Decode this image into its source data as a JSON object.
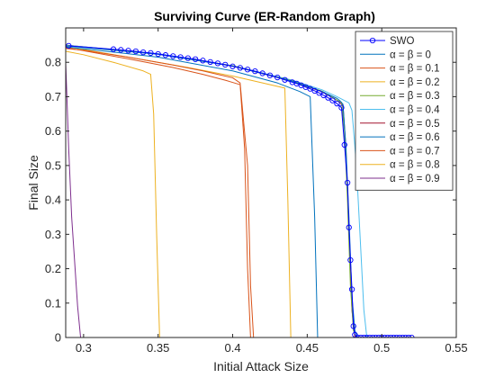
{
  "chart_data": {
    "type": "line",
    "title": "Surviving Curve (ER-Random Graph)",
    "xlabel": "Initial Attack Size",
    "ylabel": "Final Size",
    "xlim": [
      0.288,
      0.55
    ],
    "ylim": [
      0,
      0.9
    ],
    "xticks": [
      0.3,
      0.35,
      0.4,
      0.45,
      0.5,
      0.55
    ],
    "xtick_labels": [
      "0.3",
      "0.35",
      "0.4",
      "0.45",
      "0.5",
      "0.55"
    ],
    "yticks": [
      0,
      0.1,
      0.2,
      0.3,
      0.4,
      0.5,
      0.6,
      0.7,
      0.8
    ],
    "ytick_labels": [
      "0",
      "0.1",
      "0.2",
      "0.3",
      "0.4",
      "0.5",
      "0.6",
      "0.7",
      "0.8"
    ],
    "grid": false,
    "legend_position": "top-right",
    "series": [
      {
        "name": "SWO",
        "color": "#0000ff",
        "marker": "circle",
        "x": [
          0.29,
          0.32,
          0.325,
          0.33,
          0.335,
          0.34,
          0.345,
          0.35,
          0.355,
          0.36,
          0.365,
          0.37,
          0.375,
          0.38,
          0.385,
          0.39,
          0.395,
          0.4,
          0.405,
          0.41,
          0.415,
          0.42,
          0.425,
          0.43,
          0.435,
          0.44,
          0.443,
          0.446,
          0.449,
          0.452,
          0.455,
          0.458,
          0.461,
          0.464,
          0.467,
          0.47,
          0.473,
          0.475,
          0.477,
          0.478,
          0.479,
          0.48,
          0.481,
          0.482,
          0.484,
          0.486,
          0.488,
          0.49,
          0.492,
          0.494,
          0.496,
          0.498,
          0.5,
          0.502,
          0.504,
          0.506,
          0.508,
          0.51,
          0.512,
          0.514,
          0.516,
          0.518,
          0.52
        ],
        "y": [
          0.848,
          0.838,
          0.836,
          0.834,
          0.832,
          0.829,
          0.827,
          0.824,
          0.821,
          0.818,
          0.815,
          0.812,
          0.809,
          0.805,
          0.801,
          0.797,
          0.793,
          0.788,
          0.784,
          0.779,
          0.774,
          0.768,
          0.762,
          0.756,
          0.749,
          0.742,
          0.738,
          0.733,
          0.728,
          0.723,
          0.717,
          0.711,
          0.704,
          0.697,
          0.689,
          0.68,
          0.668,
          0.56,
          0.45,
          0.32,
          0.225,
          0.14,
          0.033,
          0.008,
          0,
          0,
          0,
          0,
          0,
          0,
          0,
          0,
          0,
          0,
          0,
          0,
          0,
          0,
          0,
          0,
          0,
          0,
          0
        ]
      },
      {
        "name": "α = β = 0",
        "color": "#0072bd",
        "marker": "",
        "x": [
          0.288,
          0.35,
          0.4,
          0.44,
          0.46,
          0.47,
          0.472,
          0.474,
          0.476,
          0.478,
          0.48,
          0.482,
          0.484,
          0.52
        ],
        "y": [
          0.848,
          0.823,
          0.789,
          0.745,
          0.715,
          0.695,
          0.688,
          0.678,
          0.55,
          0.35,
          0.12,
          0.02,
          0,
          0
        ]
      },
      {
        "name": "α = β = 0.1",
        "color": "#d95319",
        "marker": "",
        "x": [
          0.288,
          0.3,
          0.33,
          0.36,
          0.38,
          0.39,
          0.4,
          0.405,
          0.41,
          0.412,
          0.414,
          0.52
        ],
        "y": [
          0.84,
          0.835,
          0.815,
          0.792,
          0.775,
          0.765,
          0.755,
          0.74,
          0.5,
          0.15,
          0,
          0
        ]
      },
      {
        "name": "α = β = 0.2",
        "color": "#edb120",
        "marker": "",
        "x": [
          0.288,
          0.3,
          0.32,
          0.34,
          0.345,
          0.347,
          0.349,
          0.351,
          0.52
        ],
        "y": [
          0.832,
          0.822,
          0.8,
          0.775,
          0.765,
          0.65,
          0.3,
          0,
          0
        ]
      },
      {
        "name": "α = β = 0.3",
        "color": "#77ac30",
        "marker": "",
        "x": [
          0.288,
          0.35,
          0.4,
          0.44,
          0.46,
          0.47,
          0.473,
          0.475,
          0.477,
          0.479,
          0.481,
          0.483,
          0.52
        ],
        "y": [
          0.849,
          0.824,
          0.79,
          0.746,
          0.716,
          0.69,
          0.684,
          0.6,
          0.4,
          0.15,
          0.02,
          0,
          0
        ]
      },
      {
        "name": "α = β = 0.4",
        "color": "#4dbeee",
        "marker": "",
        "x": [
          0.288,
          0.35,
          0.4,
          0.44,
          0.46,
          0.47,
          0.478,
          0.48,
          0.483,
          0.486,
          0.488,
          0.49,
          0.52
        ],
        "y": [
          0.85,
          0.825,
          0.79,
          0.748,
          0.72,
          0.7,
          0.682,
          0.66,
          0.5,
          0.25,
          0.08,
          0,
          0
        ]
      },
      {
        "name": "α = β = 0.5",
        "color": "#a2142f",
        "marker": "",
        "x": [
          0.288,
          0.35,
          0.4,
          0.44,
          0.46,
          0.47,
          0.474,
          0.476,
          0.478,
          0.48,
          0.482,
          0.52
        ],
        "y": [
          0.85,
          0.824,
          0.789,
          0.745,
          0.714,
          0.69,
          0.675,
          0.55,
          0.3,
          0.08,
          0,
          0
        ]
      },
      {
        "name": "α = β = 0.6",
        "color": "#0072bd",
        "marker": "",
        "x": [
          0.288,
          0.35,
          0.4,
          0.43,
          0.445,
          0.452,
          0.455,
          0.457,
          0.52
        ],
        "y": [
          0.845,
          0.815,
          0.775,
          0.74,
          0.715,
          0.7,
          0.35,
          0,
          0
        ]
      },
      {
        "name": "α = β = 0.7",
        "color": "#d95319",
        "marker": "",
        "x": [
          0.288,
          0.33,
          0.36,
          0.38,
          0.395,
          0.405,
          0.408,
          0.41,
          0.412,
          0.52
        ],
        "y": [
          0.843,
          0.81,
          0.785,
          0.765,
          0.748,
          0.735,
          0.55,
          0.2,
          0,
          0
        ]
      },
      {
        "name": "α = β = 0.8",
        "color": "#edb120",
        "marker": "",
        "x": [
          0.288,
          0.33,
          0.37,
          0.4,
          0.42,
          0.435,
          0.437,
          0.439,
          0.52
        ],
        "y": [
          0.846,
          0.815,
          0.785,
          0.76,
          0.74,
          0.725,
          0.4,
          0,
          0
        ]
      },
      {
        "name": "α = β = 0.9",
        "color": "#7e2f8e",
        "marker": "",
        "x": [
          0.288,
          0.29,
          0.292,
          0.294,
          0.296,
          0.298,
          0.52
        ],
        "y": [
          0.8,
          0.55,
          0.35,
          0.22,
          0.09,
          0,
          0
        ]
      }
    ]
  }
}
